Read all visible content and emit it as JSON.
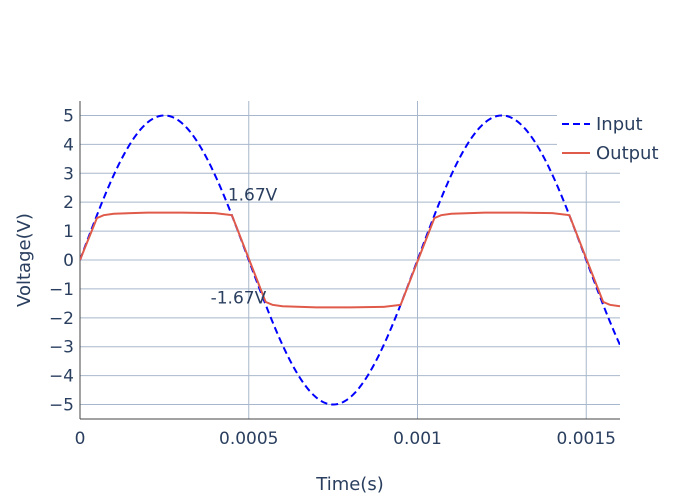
{
  "chart_data": {
    "type": "line",
    "title": "",
    "xlabel": "Time(s)",
    "ylabel": "Voltage(V)",
    "xlim": [
      0,
      0.0016
    ],
    "ylim": [
      -5.5,
      5.5
    ],
    "x_ticks": [
      0,
      0.0005,
      0.001,
      0.0015
    ],
    "x_tick_labels": [
      "0",
      "0.0005",
      "0.001",
      "0.0015"
    ],
    "y_ticks": [
      5,
      4,
      3,
      2,
      1,
      0,
      -1,
      -2,
      -3,
      -4,
      -5
    ],
    "y_tick_labels": [
      "5",
      "4",
      "3",
      "2",
      "1",
      "0",
      "−1",
      "−2",
      "−3",
      "−4",
      "−5"
    ],
    "grid": true,
    "legend_position": "top-right",
    "series": [
      {
        "name": "Input",
        "style": "dashed",
        "color": "#0000ff",
        "function": "5*sin(2*pi*1000*t)",
        "amplitude": 5,
        "frequency": 1000
      },
      {
        "name": "Output",
        "style": "solid",
        "color": "#e05a4a",
        "clip_level": 1.67,
        "x": [
          0,
          5e-05,
          7e-05,
          0.0001,
          0.0002,
          0.0003,
          0.0004,
          0.00045,
          0.00055,
          0.00057,
          0.0006,
          0.0007,
          0.0008,
          0.0009,
          0.00095,
          0.00105,
          0.00107,
          0.0011,
          0.0012,
          0.0013,
          0.0014,
          0.00145,
          0.00155,
          0.00157,
          0.0016
        ],
        "y": [
          0,
          1.45,
          1.55,
          1.6,
          1.64,
          1.64,
          1.62,
          1.55,
          -1.45,
          -1.55,
          -1.6,
          -1.64,
          -1.64,
          -1.62,
          -1.55,
          1.45,
          1.55,
          1.6,
          1.64,
          1.64,
          1.62,
          1.55,
          -1.45,
          -1.55,
          -1.6
        ]
      }
    ],
    "annotations": [
      {
        "text": "1.67V",
        "x": 0.000438,
        "y": 2.05
      },
      {
        "text": "-1.67V",
        "x": 0.000387,
        "y": -1.5
      }
    ]
  }
}
